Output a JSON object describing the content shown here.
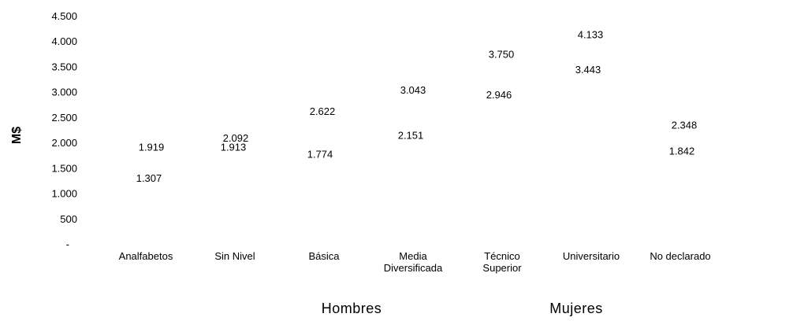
{
  "chart_data": {
    "type": "scatter",
    "title": "",
    "xlabel": "",
    "ylabel": "",
    "ylabel_glyph": "M$",
    "ylim": [
      0,
      4500
    ],
    "y_ticks": [
      {
        "value": 4500,
        "label": "4.500"
      },
      {
        "value": 4000,
        "label": "4.000"
      },
      {
        "value": 3500,
        "label": "3.500"
      },
      {
        "value": 3000,
        "label": "3.000"
      },
      {
        "value": 2500,
        "label": "2.500"
      },
      {
        "value": 2000,
        "label": "2.000"
      },
      {
        "value": 1500,
        "label": "1.500"
      },
      {
        "value": 1000,
        "label": "1.000"
      },
      {
        "value": 500,
        "label": "500"
      },
      {
        "value": 0,
        "label": "-"
      }
    ],
    "categories": [
      [
        "Analfabetos"
      ],
      [
        "Sin Nivel"
      ],
      [
        "Básica"
      ],
      [
        "Media",
        "Diversificada"
      ],
      [
        "Técnico",
        "Superior"
      ],
      [
        "Universitario"
      ],
      [
        "No declarado"
      ]
    ],
    "series": [
      {
        "name": "Hombres",
        "values": [
          1919,
          2092,
          2622,
          3043,
          3750,
          4133,
          2348
        ],
        "labels": [
          "1.919",
          "2.092",
          "2.622",
          "3.043",
          "3.750",
          "4.133",
          "2.348"
        ]
      },
      {
        "name": "Mujeres",
        "values": [
          1307,
          1913,
          1774,
          2151,
          2946,
          3443,
          1842
        ],
        "labels": [
          "1.307",
          "1.913",
          "1.774",
          "2.151",
          "2.946",
          "3.443",
          "1.842"
        ]
      }
    ],
    "grid": false,
    "legend_position": "bottom",
    "markers_visible": false
  }
}
